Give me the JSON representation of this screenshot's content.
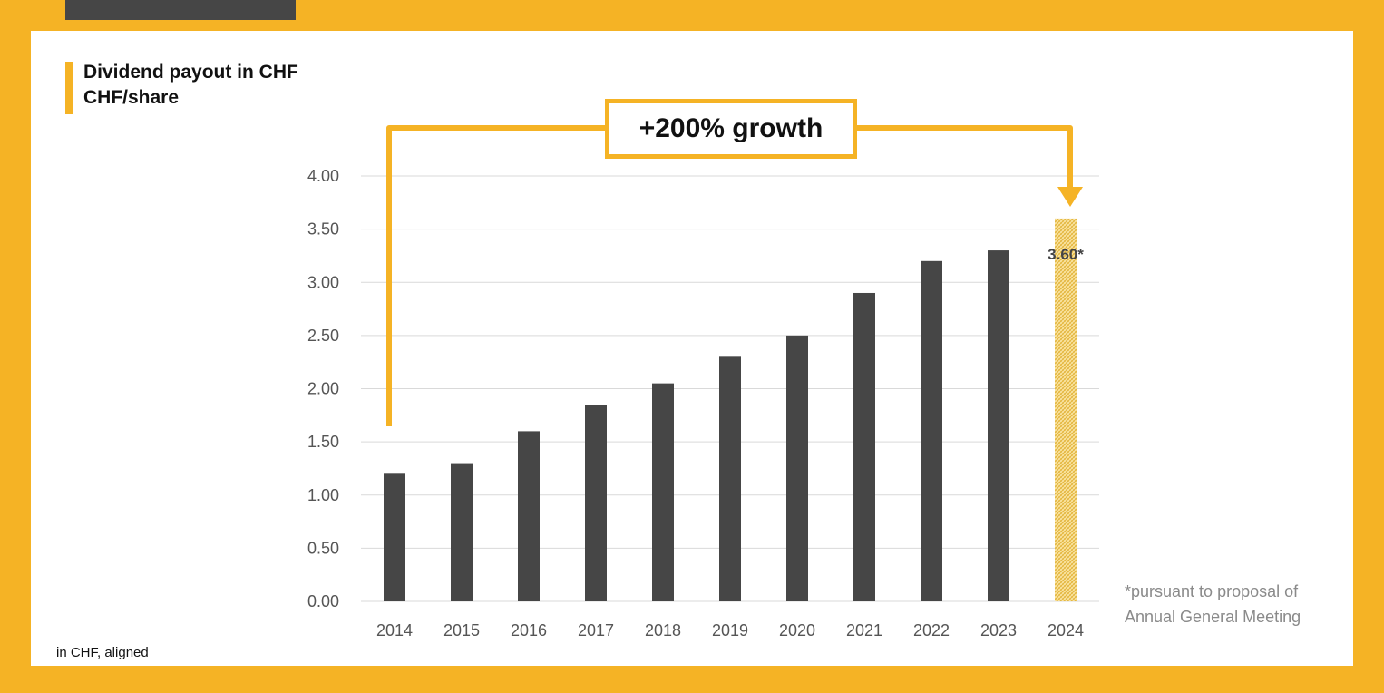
{
  "title_line1": "Dividend payout in CHF",
  "title_line2": "CHF/share",
  "growth_label": "+200% growth",
  "footnote_left": "in CHF, aligned",
  "footnote_right_line1": "*pursuant to proposal of",
  "footnote_right_line2": "Annual General Meeting",
  "colors": {
    "accent": "#F5B325",
    "bar": "#464646",
    "grid": "#D9D9D9"
  },
  "chart_data": {
    "type": "bar",
    "categories": [
      "2014",
      "2015",
      "2016",
      "2017",
      "2018",
      "2019",
      "2020",
      "2021",
      "2022",
      "2023",
      "2024"
    ],
    "values": [
      1.2,
      1.3,
      1.6,
      1.85,
      2.05,
      2.3,
      2.5,
      2.9,
      3.2,
      3.3,
      3.6
    ],
    "ylim": [
      0,
      4
    ],
    "yticks": [
      "0.00",
      "0.50",
      "1.00",
      "1.50",
      "2.00",
      "2.50",
      "3.00",
      "3.50",
      "4.00"
    ],
    "data_labels": {
      "2024": "3.60*"
    },
    "highlight": "2024",
    "grid": true
  }
}
